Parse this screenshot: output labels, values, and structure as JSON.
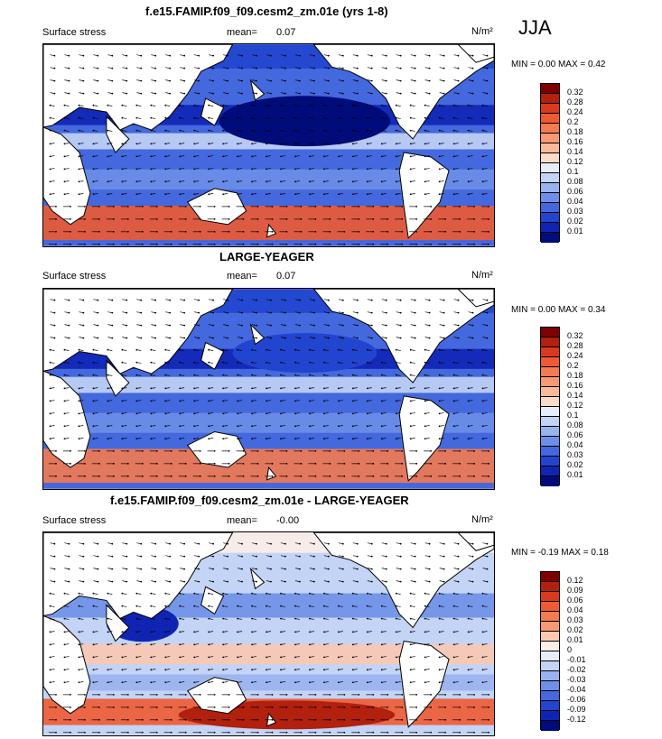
{
  "season": "JJA",
  "panels": [
    {
      "title": "f.e15.FAMIP.f09_f09.cesm2_zm.01e (yrs 1-8)",
      "variable": "Surface stress",
      "mean_label": "mean=",
      "mean_value": "0.07",
      "units": "N/m²",
      "minmax": "MIN =  0.00 MAX =  0.42",
      "levels": [
        "0.32",
        "0.28",
        "0.24",
        "0.2",
        "0.18",
        "0.16",
        "0.14",
        "0.12",
        "0.1",
        "0.08",
        "0.06",
        "0.04",
        "0.03",
        "0.02",
        "0.01"
      ],
      "colors": [
        "#7f0000",
        "#b2200e",
        "#d83a1e",
        "#ef5a32",
        "#f47a50",
        "#f79a74",
        "#f9ba9a",
        "#fbdcc8",
        "#e6eefb",
        "#c3d4f6",
        "#99b3ef",
        "#6d8fe8",
        "#4468dd",
        "#2245cf",
        "#1024b4",
        "#000c7a"
      ]
    },
    {
      "title": "LARGE-YEAGER",
      "variable": "Surface stress",
      "mean_label": "mean=",
      "mean_value": "0.07",
      "units": "N/m²",
      "minmax": "MIN =  0.00 MAX =  0.34",
      "levels": [
        "0.32",
        "0.28",
        "0.24",
        "0.2",
        "0.18",
        "0.16",
        "0.14",
        "0.12",
        "0.1",
        "0.08",
        "0.06",
        "0.04",
        "0.03",
        "0.02",
        "0.01"
      ],
      "colors": [
        "#7f0000",
        "#b2200e",
        "#d83a1e",
        "#ef5a32",
        "#f47a50",
        "#f79a74",
        "#f9ba9a",
        "#fbdcc8",
        "#e6eefb",
        "#c3d4f6",
        "#99b3ef",
        "#6d8fe8",
        "#4468dd",
        "#2245cf",
        "#1024b4",
        "#000c7a"
      ]
    },
    {
      "title": "f.e15.FAMIP.f09_f09.cesm2_zm.01e - LARGE-YEAGER",
      "variable": "Surface stress",
      "mean_label": "mean=",
      "mean_value": "-0.00",
      "units": "N/m²",
      "minmax": "MIN = -0.19 MAX =  0.18",
      "levels": [
        "0.12",
        "0.09",
        "0.06",
        "0.04",
        "0.03",
        "0.02",
        "0.01",
        "0",
        "-0.01",
        "-0.02",
        "-0.03",
        "-0.04",
        "-0.06",
        "-0.09",
        "-0.12"
      ],
      "colors": [
        "#7f0000",
        "#b2200e",
        "#d83a1e",
        "#ef5a32",
        "#f47a50",
        "#f79a74",
        "#fbc8b0",
        "#fdeee6",
        "#e6eefb",
        "#c3d4f6",
        "#99b3ef",
        "#6d8fe8",
        "#4468dd",
        "#2245cf",
        "#1024b4",
        "#000c7a"
      ]
    }
  ]
}
